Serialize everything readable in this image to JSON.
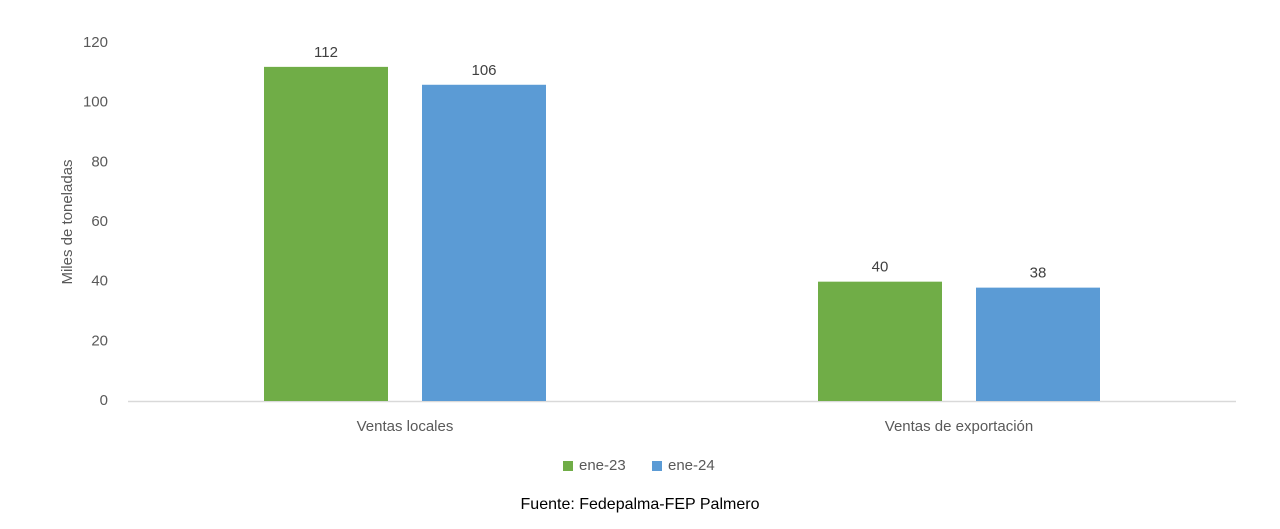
{
  "chart_data": {
    "type": "bar",
    "title": "",
    "xlabel": "",
    "ylabel": "Miles de toneladas",
    "categories": [
      "Ventas locales",
      "Ventas de exportación"
    ],
    "series": [
      {
        "name": "ene-23",
        "values": [
          112,
          40
        ],
        "color": "#70ad47"
      },
      {
        "name": "ene-24",
        "values": [
          106,
          38
        ],
        "color": "#5b9bd5"
      }
    ],
    "ylim": [
      0,
      120
    ],
    "yticks": [
      0,
      20,
      40,
      60,
      80,
      100,
      120
    ],
    "grid": false,
    "legend": "bottom",
    "data_labels": true
  },
  "source": "Fuente: Fedepalma-FEP Palmero",
  "colors": {
    "axis": "#d9d9d9"
  }
}
